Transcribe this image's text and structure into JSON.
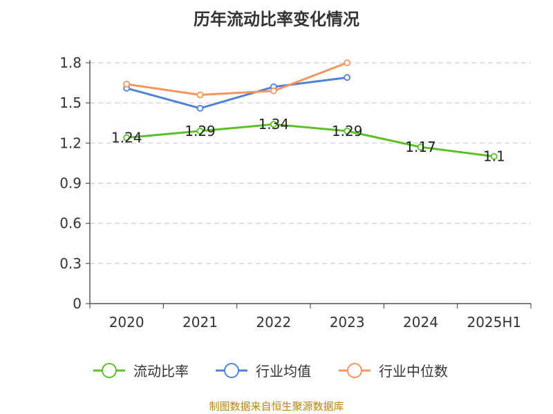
{
  "chart_data": {
    "type": "line",
    "title": "历年流动比率变化情况",
    "categories": [
      "2020",
      "2021",
      "2022",
      "2023",
      "2024",
      "2025H1"
    ],
    "y_ticks": [
      "0",
      "0.3",
      "0.6",
      "0.9",
      "1.2",
      "1.5",
      "1.8"
    ],
    "ylim": [
      0,
      1.8
    ],
    "grid": true,
    "legend_position": "bottom",
    "series": [
      {
        "name": "流动比率",
        "color": "#5cbf27",
        "values": [
          1.24,
          1.29,
          1.34,
          1.29,
          1.17,
          1.1
        ],
        "labels": [
          "1.24",
          "1.29",
          "1.34",
          "1.29",
          "1.17",
          "1.1"
        ]
      },
      {
        "name": "行业均值",
        "color": "#4f82d6",
        "values": [
          1.61,
          1.46,
          1.62,
          1.69,
          null,
          null
        ]
      },
      {
        "name": "行业中位数",
        "color": "#f5945c",
        "values": [
          1.64,
          1.56,
          1.59,
          1.8,
          null,
          null
        ]
      }
    ]
  },
  "source_note": "制图数据来自恒生聚源数据库"
}
